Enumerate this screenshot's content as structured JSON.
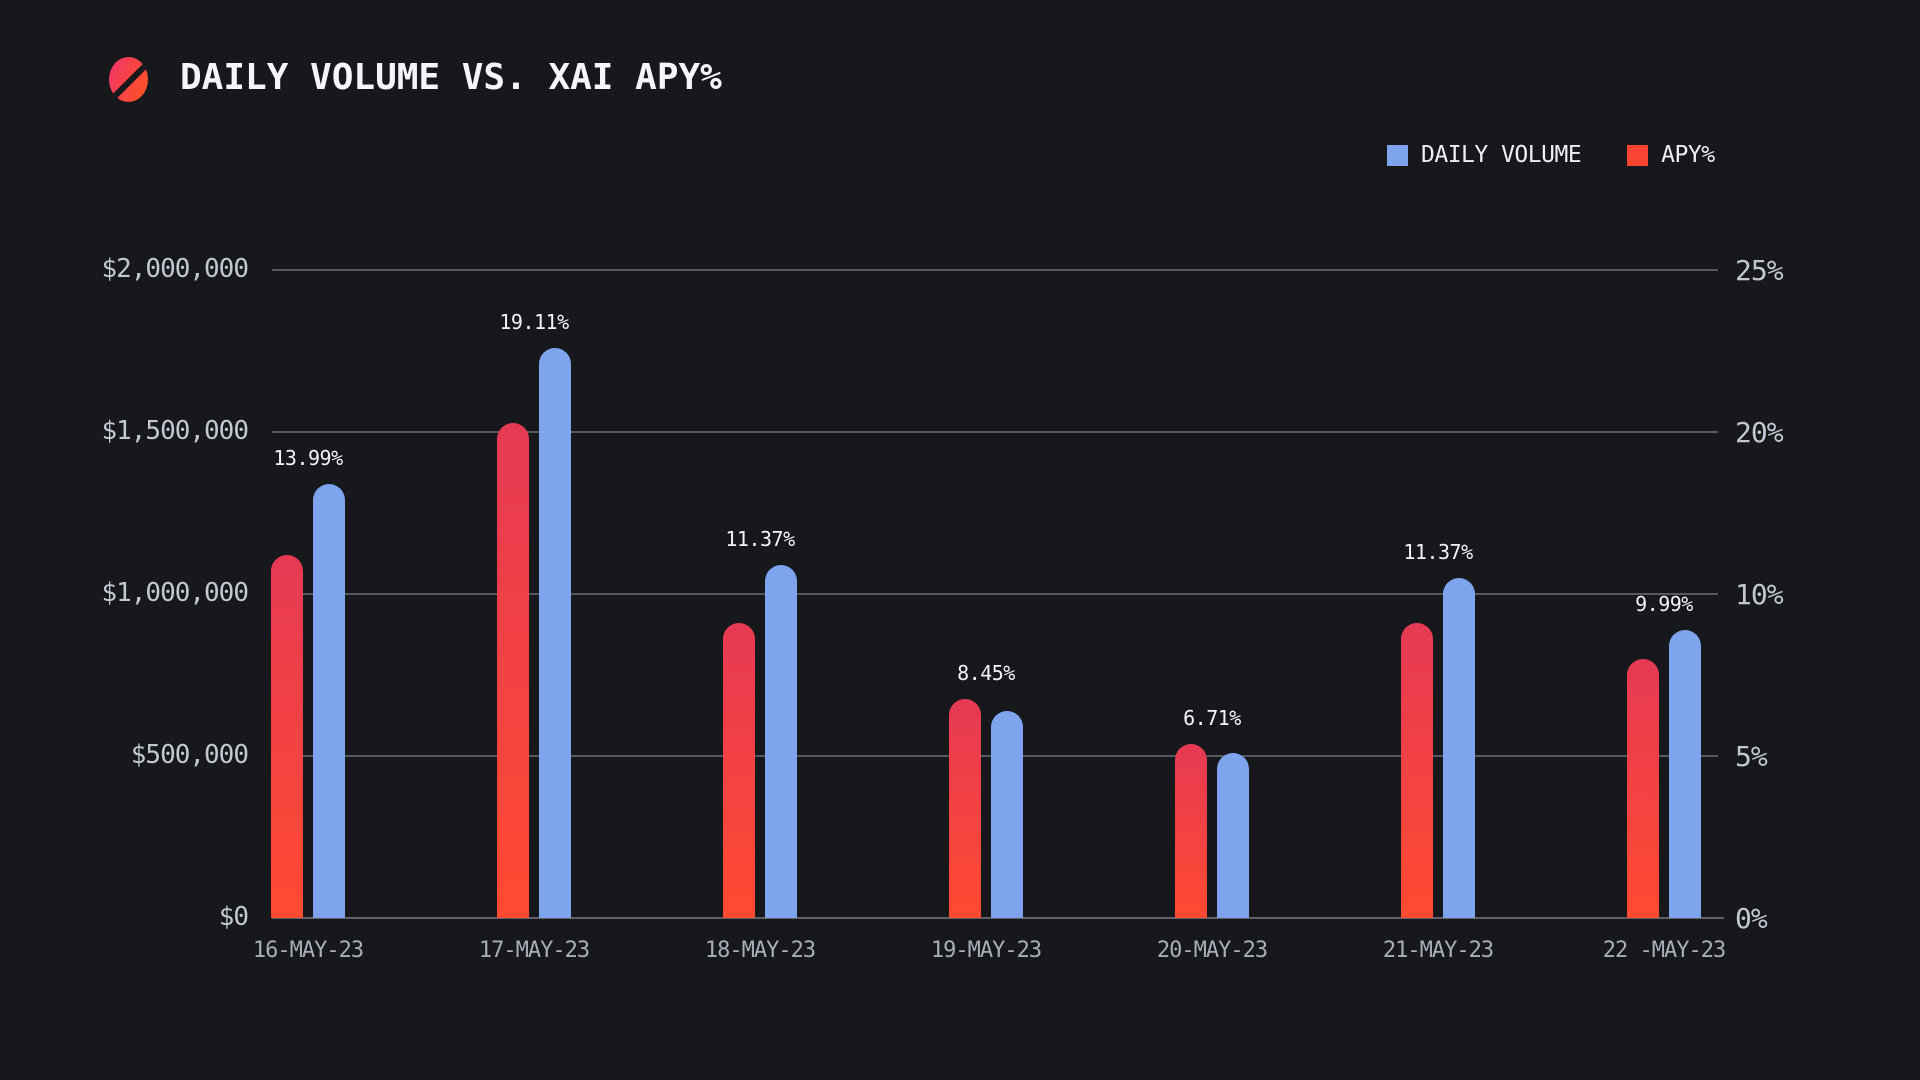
{
  "header": {
    "title": "DAILY VOLUME VS. XAI APY%"
  },
  "legend": {
    "items": [
      {
        "label": "DAILY VOLUME",
        "swatch": "blue-square",
        "color": "#7da4ed"
      },
      {
        "label": "APY%",
        "swatch": "red-square",
        "color": "#fa4534"
      }
    ]
  },
  "chart_data": {
    "type": "bar",
    "title": "DAILY VOLUME VS. XAI APY%",
    "categories": [
      "16-MAY-23",
      "17-MAY-23",
      "18-MAY-23",
      "19-MAY-23",
      "20-MAY-23",
      "21-MAY-23",
      "22 -MAY-23"
    ],
    "series": [
      {
        "name": "DAILY VOLUME",
        "axis": "left",
        "color": "#7da4ed",
        "values": [
          1340000,
          1760000,
          1090000,
          640000,
          510000,
          1050000,
          890000
        ]
      },
      {
        "name": "APY%",
        "axis": "right",
        "color_top": "#e63a54",
        "color_bottom": "#ff4a31",
        "values": [
          13.99,
          19.11,
          11.37,
          8.45,
          6.71,
          11.37,
          9.99
        ]
      }
    ],
    "bar_labels": [
      "13.99%",
      "19.11%",
      "11.37%",
      "8.45%",
      "6.71%",
      "11.37%",
      "9.99%"
    ],
    "left_axis": {
      "min": 0,
      "max": 2000000,
      "tick_labels": [
        "$2,000,000",
        "$1,500,000",
        "$1,000,000",
        "$500,000",
        "$0"
      ]
    },
    "right_axis": {
      "min": 0,
      "max": 25,
      "tick_labels": [
        "25%",
        "20%",
        "10%",
        "5%",
        "0%"
      ]
    },
    "grid": true,
    "legend_position": "top-right"
  },
  "colors": {
    "background": "#16181c",
    "volume": "#7da4ed",
    "apy_top": "#e63a54",
    "apy_bottom": "#ff4a31",
    "legend_apy": "#fa4534",
    "grid": "#54585f",
    "axis": "#5d626a",
    "tick": "#c2c7d1",
    "date": "#a8aeb8",
    "value": "#f2f4f7",
    "title": "#f3f5f8",
    "logo_from": "#f23960",
    "logo_to": "#ff5126"
  }
}
